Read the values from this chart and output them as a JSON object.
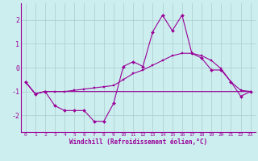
{
  "x": [
    0,
    1,
    2,
    3,
    4,
    5,
    6,
    7,
    8,
    9,
    10,
    11,
    12,
    13,
    14,
    15,
    16,
    17,
    18,
    19,
    20,
    21,
    22,
    23
  ],
  "line_flat": [
    -0.6,
    -1.1,
    -1.0,
    -1.0,
    -1.0,
    -1.0,
    -1.0,
    -1.0,
    -1.0,
    -1.0,
    -1.0,
    -1.0,
    -1.0,
    -1.0,
    -1.0,
    -1.0,
    -1.0,
    -1.0,
    -1.0,
    -1.0,
    -1.0,
    -1.0,
    -1.0,
    -1.0
  ],
  "line_zigzag": [
    -0.6,
    -1.1,
    -1.0,
    -1.6,
    -1.8,
    -1.8,
    -1.8,
    -2.25,
    -2.25,
    -1.5,
    0.05,
    0.25,
    0.05,
    1.5,
    2.2,
    1.55,
    2.2,
    0.6,
    0.4,
    -0.1,
    -0.1,
    -0.6,
    -1.2,
    -1.0
  ],
  "line_diag": [
    -0.6,
    -1.1,
    -1.0,
    -1.0,
    -1.0,
    -0.95,
    -0.9,
    -0.85,
    -0.8,
    -0.75,
    -0.5,
    -0.25,
    -0.1,
    0.1,
    0.3,
    0.5,
    0.6,
    0.6,
    0.5,
    0.3,
    -0.05,
    -0.6,
    -0.95,
    -1.0
  ],
  "color": "#990099",
  "bg_color": "#cceeee",
  "grid_color": "#aacccc",
  "xlabel": "Windchill (Refroidissement éolien,°C)",
  "xlim": [
    -0.5,
    23.5
  ],
  "ylim": [
    -2.7,
    2.7
  ],
  "yticks": [
    -2,
    -1,
    0,
    1,
    2
  ],
  "xticks": [
    0,
    1,
    2,
    3,
    4,
    5,
    6,
    7,
    8,
    9,
    10,
    11,
    12,
    13,
    14,
    15,
    16,
    17,
    18,
    19,
    20,
    21,
    22,
    23
  ]
}
